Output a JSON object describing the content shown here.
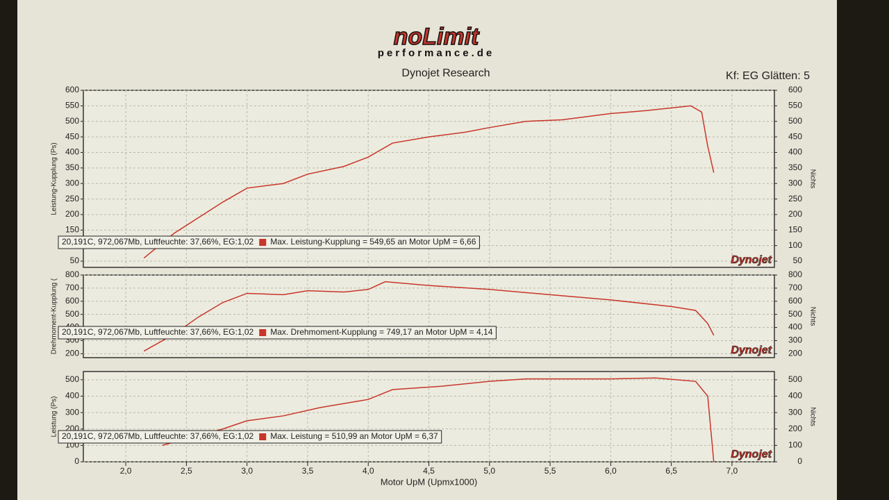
{
  "header": {
    "logo": "noLimit",
    "logo_sub": "performance.de",
    "title": "Dynojet Research",
    "setting": "Kf: EG Glätten: 5"
  },
  "chart_data": [
    {
      "type": "line",
      "ylabel": "Leistung-Kupplung (Ps)",
      "y2label": "Nichts",
      "color": "#c8352a",
      "brand": "Dynojet",
      "info": "20,191C, 972,067Mb, Luftfeuchte: 37,66%, EG:1,02",
      "annotation": "Max. Leistung-Kupplung = 549,65 an Motor UpM = 6,66",
      "xlim": [
        1.65,
        7.35
      ],
      "xticks": [
        2,
        2.5,
        3,
        3.5,
        4,
        4.5,
        5,
        5.5,
        6,
        6.5,
        7
      ],
      "ylim": [
        30,
        600
      ],
      "yticks": [
        50,
        100,
        150,
        200,
        250,
        300,
        350,
        400,
        450,
        500,
        550,
        600
      ],
      "y2lim": [
        30,
        600
      ],
      "y2ticks": [
        50,
        100,
        150,
        200,
        250,
        300,
        350,
        400,
        450,
        500,
        550,
        600
      ],
      "x": [
        2.15,
        2.4,
        2.6,
        2.8,
        3.0,
        3.3,
        3.5,
        3.8,
        4.0,
        4.2,
        4.5,
        4.8,
        5.0,
        5.3,
        5.6,
        6.0,
        6.3,
        6.66,
        6.75,
        6.8,
        6.85
      ],
      "values": [
        60,
        140,
        190,
        240,
        285,
        300,
        330,
        355,
        385,
        430,
        450,
        465,
        480,
        500,
        505,
        525,
        535,
        550,
        530,
        420,
        335
      ]
    },
    {
      "type": "line",
      "ylabel": "Drehmoment-Kupplung (",
      "y2label": "Nichts",
      "color": "#c8352a",
      "brand": "Dynojet",
      "info": "20,191C, 972,067Mb, Luftfeuchte: 37,66%, EG:1,02",
      "annotation": "Max. Drehmoment-Kupplung = 749,17 an Motor UpM = 4,14",
      "xlim": [
        1.65,
        7.35
      ],
      "xticks": [
        2,
        2.5,
        3,
        3.5,
        4,
        4.5,
        5,
        5.5,
        6,
        6.5,
        7
      ],
      "ylim": [
        170,
        800
      ],
      "yticks": [
        200,
        300,
        400,
        500,
        600,
        700,
        800
      ],
      "y2lim": [
        170,
        800
      ],
      "y2ticks": [
        200,
        300,
        400,
        500,
        600,
        700,
        800
      ],
      "x": [
        2.15,
        2.4,
        2.6,
        2.8,
        3.0,
        3.3,
        3.5,
        3.8,
        4.0,
        4.14,
        4.5,
        5.0,
        5.5,
        6.0,
        6.5,
        6.7,
        6.8,
        6.85
      ],
      "values": [
        220,
        350,
        480,
        590,
        660,
        650,
        680,
        670,
        690,
        749,
        720,
        690,
        650,
        610,
        560,
        530,
        430,
        340
      ]
    },
    {
      "type": "line",
      "ylabel": "Leistung (Ps)",
      "y2label": "Nichts",
      "color": "#c8352a",
      "brand": "Dynojet",
      "info": "20,191C, 972,067Mb, Luftfeuchte: 37,66%, EG:1,02",
      "annotation": "Max. Leistung = 510,99 an Motor UpM = 6,37",
      "xlabel": "Motor UpM (Upmx1000)",
      "xlim": [
        1.65,
        7.35
      ],
      "xticks": [
        {
          "value": 2,
          "label": "2,0"
        },
        {
          "value": 2.5,
          "label": "2,5"
        },
        {
          "value": 3,
          "label": "3,0"
        },
        {
          "value": 3.5,
          "label": "3,5"
        },
        {
          "value": 4,
          "label": "4,0"
        },
        {
          "value": 4.5,
          "label": "4,5"
        },
        {
          "value": 5,
          "label": "5,0"
        },
        {
          "value": 5.5,
          "label": "5,5"
        },
        {
          "value": 6,
          "label": "6,0"
        },
        {
          "value": 6.5,
          "label": "6,5"
        },
        {
          "value": 7,
          "label": "7,0"
        }
      ],
      "ylim": [
        0,
        550
      ],
      "yticks": [
        0,
        100,
        200,
        300,
        400,
        500
      ],
      "y2lim": [
        0,
        550
      ],
      "y2ticks": [
        0,
        100,
        200,
        300,
        400,
        500
      ],
      "x": [
        2.3,
        2.5,
        2.8,
        3.0,
        3.3,
        3.6,
        4.0,
        4.2,
        4.6,
        5.0,
        5.3,
        6.0,
        6.37,
        6.7,
        6.8,
        6.85
      ],
      "values": [
        100,
        140,
        200,
        250,
        280,
        330,
        380,
        440,
        460,
        490,
        505,
        505,
        511,
        490,
        400,
        0
      ]
    }
  ]
}
